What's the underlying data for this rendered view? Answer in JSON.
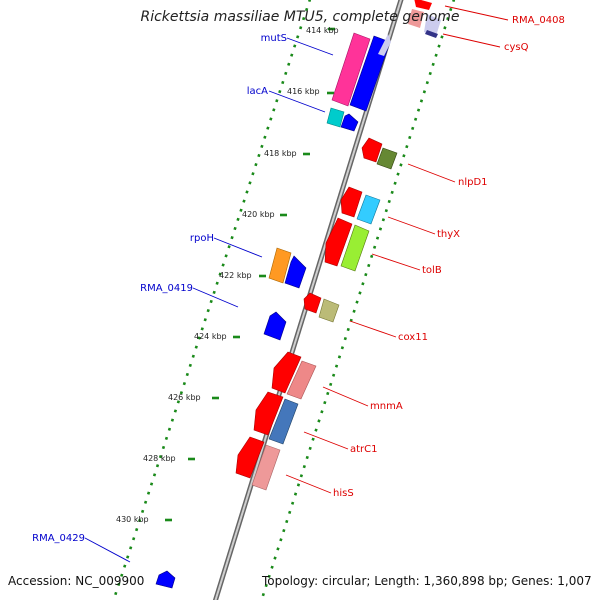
{
  "title": "Rickettsia massiliae MTU5, complete genome",
  "footer": {
    "accession": "Accession: NC_009900",
    "summary": "Topology: circular; Length: 1,360,898 bp; Genes: 1,007"
  },
  "colors": {
    "label_forward": "#0000cc",
    "label_reverse": "#dd0000",
    "backbone": "#888888",
    "tick_track": "#1a8a1a"
  },
  "kbp_labels": [
    {
      "text": "414 kbp",
      "pos": 414
    },
    {
      "text": "416 kbp",
      "pos": 416
    },
    {
      "text": "418 kbp",
      "pos": 418
    },
    {
      "text": "420 kbp",
      "pos": 420
    },
    {
      "text": "422 kbp",
      "pos": 422
    },
    {
      "text": "424 kbp",
      "pos": 424
    },
    {
      "text": "426 kbp",
      "pos": 426
    },
    {
      "text": "428 kbp",
      "pos": 428
    },
    {
      "text": "430 kbp",
      "pos": 430
    }
  ],
  "genes": [
    {
      "name": "RMA_0408",
      "strand": "reverse",
      "color": "#ff0000"
    },
    {
      "name": "cysQ",
      "strand": "reverse",
      "color": "#ccccee"
    },
    {
      "name": "mutS",
      "strand": "forward",
      "color": "#ff3399"
    },
    {
      "name": "lacA",
      "strand": "forward",
      "color": "#00cccc"
    },
    {
      "name": "nlpD1",
      "strand": "reverse",
      "color": "#668833"
    },
    {
      "name": "thyX",
      "strand": "reverse",
      "color": "#33ccff"
    },
    {
      "name": "tolB",
      "strand": "reverse",
      "color": "#99ee33"
    },
    {
      "name": "rpoH",
      "strand": "forward",
      "color": "#ff9922"
    },
    {
      "name": "RMA_0419",
      "strand": "forward",
      "color": "#0000ff"
    },
    {
      "name": "cox11",
      "strand": "reverse",
      "color": "#bbbb77"
    },
    {
      "name": "mnmA",
      "strand": "reverse",
      "color": "#ee8888"
    },
    {
      "name": "atrC1",
      "strand": "reverse",
      "color": "#4477bb"
    },
    {
      "name": "hisS",
      "strand": "reverse",
      "color": "#ee9999"
    },
    {
      "name": "RMA_0429",
      "strand": "forward",
      "color": "#0000ff"
    }
  ]
}
